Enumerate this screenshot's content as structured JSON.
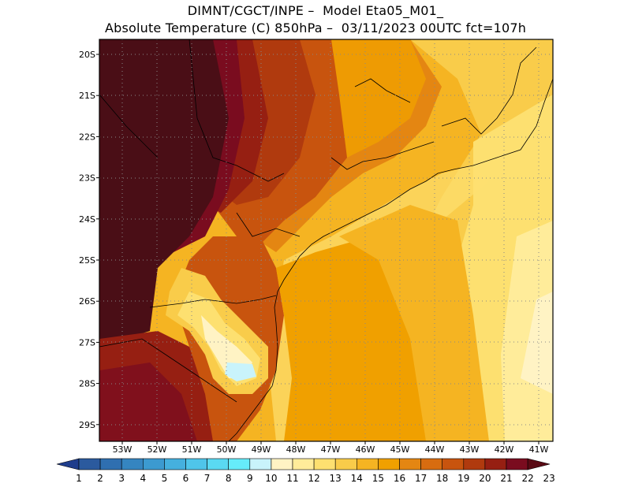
{
  "title_line1": "DIMNT/CGCT/INPE –  Model Eta05_M01_",
  "title_line2": "Absolute Temperature (C) 850hPa –  03/11/2023 00UTC fct=107h",
  "lat_ticks": [
    "20S",
    "21S",
    "22S",
    "23S",
    "24S",
    "25S",
    "26S",
    "27S",
    "28S",
    "29S"
  ],
  "lon_ticks": [
    "53W",
    "52W",
    "51W",
    "50W",
    "49W",
    "48W",
    "47W",
    "46W",
    "45W",
    "44W",
    "43W",
    "42W",
    "41W"
  ],
  "colorbar": {
    "labels": [
      "1",
      "2",
      "3",
      "4",
      "5",
      "6",
      "7",
      "8",
      "9",
      "10",
      "11",
      "12",
      "13",
      "14",
      "15",
      "16",
      "17",
      "18",
      "19",
      "20",
      "21",
      "22",
      "23"
    ],
    "colors": [
      "#1f3d8c",
      "#2b5a9e",
      "#2f6fb0",
      "#3585c0",
      "#3c9ad0",
      "#45b0de",
      "#4fc5ea",
      "#5ad9f2",
      "#66ecfa",
      "#c9f3fb",
      "#fff3c4",
      "#ffec9a",
      "#fde070",
      "#f9cc4a",
      "#f5b422",
      "#f0a000",
      "#e48612",
      "#d86c10",
      "#c8540e",
      "#b03a0e",
      "#961f12",
      "#7a0c1f",
      "#5a0a14"
    ]
  },
  "fields": {
    "west_color": "#4a0e16",
    "gray_grid": "#888888"
  }
}
